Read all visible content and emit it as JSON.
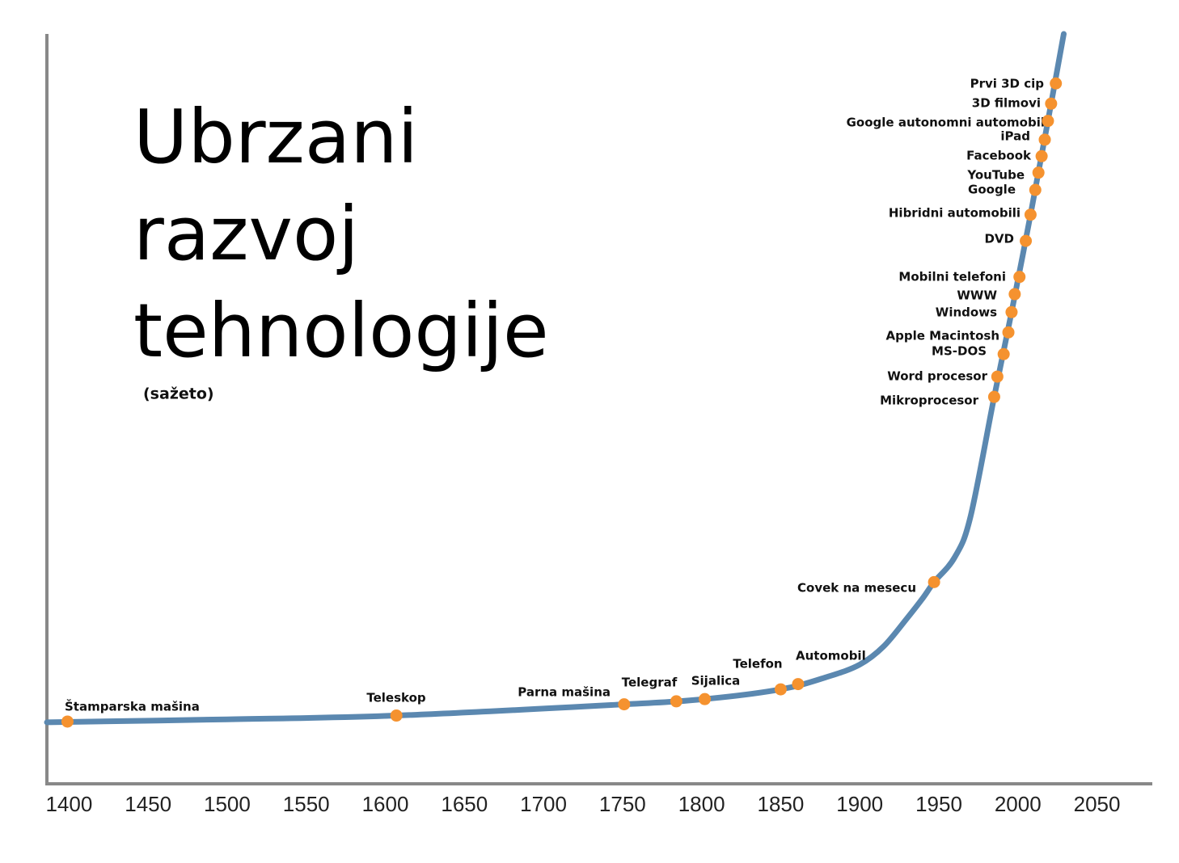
{
  "chart_data": {
    "type": "line",
    "title": "Ubrzani razvoj tehnologije",
    "subtitle": "(sažeto)",
    "xlim": [
      1386,
      2085
    ],
    "ylim": [
      0,
      100
    ],
    "xticks": [
      1400,
      1450,
      1500,
      1550,
      1600,
      1650,
      1700,
      1750,
      1800,
      1850,
      1900,
      1950,
      2000,
      2050
    ],
    "curve": {
      "color": "#5b88b0",
      "x": [
        1386,
        1500,
        1607,
        1751,
        1802,
        1850,
        1880,
        1900,
        1915,
        1930,
        1940,
        1947,
        1960,
        1970,
        1985,
        1996,
        2008,
        2019,
        2029
      ],
      "values": [
        8.2,
        8.6,
        9.1,
        10.6,
        11.3,
        12.6,
        14.3,
        15.9,
        18.3,
        22.1,
        24.8,
        26.9,
        30.2,
        35.6,
        51.6,
        62.9,
        75.9,
        88.4,
        100
      ]
    },
    "events": {
      "color": "#f5922f",
      "labels": [
        "Štamparska mašina",
        "Teleskop",
        "Parna mašina",
        "Telegraf",
        "Sijalica",
        "Telefon",
        "Automobil",
        "Covek na mesecu",
        "Mikroprocesor",
        "Word procesor",
        "MS-DOS",
        "Apple Macintosh",
        "Windows",
        "WWW",
        "Mobilni telefoni",
        "DVD",
        "Hibridni automobili",
        "Google",
        "YouTube",
        "Facebook",
        "iPad",
        "Google autonomni automobil",
        "3D filmovi",
        "Prvi 3D cip"
      ],
      "x": [
        1399,
        1607,
        1751,
        1784,
        1802,
        1850,
        1861,
        1947,
        1985,
        1987,
        1991,
        1994,
        1996,
        1998,
        2001,
        2005,
        2008,
        2011,
        2013,
        2015,
        2017,
        2019,
        2021,
        2024
      ],
      "values": [
        8.3,
        9.1,
        10.6,
        11.0,
        11.3,
        12.6,
        13.3,
        26.9,
        51.6,
        54.3,
        57.3,
        60.2,
        62.9,
        65.3,
        67.6,
        72.4,
        75.9,
        79.2,
        81.5,
        83.7,
        85.9,
        88.4,
        90.7,
        93.4
      ]
    }
  }
}
